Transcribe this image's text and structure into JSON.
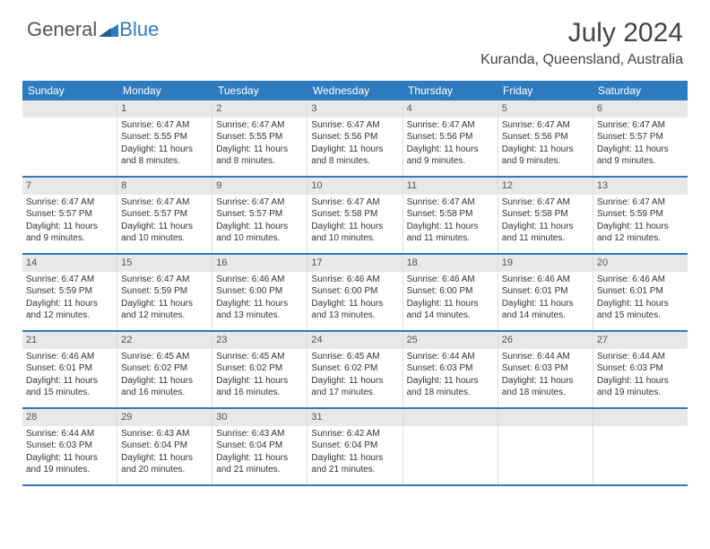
{
  "brand": {
    "part1": "General",
    "part2": "Blue"
  },
  "title": "July 2024",
  "location": "Kuranda, Queensland, Australia",
  "colors": {
    "header_bg": "#2f7bbf",
    "daynum_bg": "#e8e8e8",
    "border": "#2f7bbf",
    "cell_border": "#dddddd",
    "text": "#333333"
  },
  "dayNames": [
    "Sunday",
    "Monday",
    "Tuesday",
    "Wednesday",
    "Thursday",
    "Friday",
    "Saturday"
  ],
  "weeks": [
    [
      {
        "n": "",
        "sr": "",
        "ss": "",
        "dl": ""
      },
      {
        "n": "1",
        "sr": "6:47 AM",
        "ss": "5:55 PM",
        "dl": "11 hours and 8 minutes."
      },
      {
        "n": "2",
        "sr": "6:47 AM",
        "ss": "5:55 PM",
        "dl": "11 hours and 8 minutes."
      },
      {
        "n": "3",
        "sr": "6:47 AM",
        "ss": "5:56 PM",
        "dl": "11 hours and 8 minutes."
      },
      {
        "n": "4",
        "sr": "6:47 AM",
        "ss": "5:56 PM",
        "dl": "11 hours and 9 minutes."
      },
      {
        "n": "5",
        "sr": "6:47 AM",
        "ss": "5:56 PM",
        "dl": "11 hours and 9 minutes."
      },
      {
        "n": "6",
        "sr": "6:47 AM",
        "ss": "5:57 PM",
        "dl": "11 hours and 9 minutes."
      }
    ],
    [
      {
        "n": "7",
        "sr": "6:47 AM",
        "ss": "5:57 PM",
        "dl": "11 hours and 9 minutes."
      },
      {
        "n": "8",
        "sr": "6:47 AM",
        "ss": "5:57 PM",
        "dl": "11 hours and 10 minutes."
      },
      {
        "n": "9",
        "sr": "6:47 AM",
        "ss": "5:57 PM",
        "dl": "11 hours and 10 minutes."
      },
      {
        "n": "10",
        "sr": "6:47 AM",
        "ss": "5:58 PM",
        "dl": "11 hours and 10 minutes."
      },
      {
        "n": "11",
        "sr": "6:47 AM",
        "ss": "5:58 PM",
        "dl": "11 hours and 11 minutes."
      },
      {
        "n": "12",
        "sr": "6:47 AM",
        "ss": "5:58 PM",
        "dl": "11 hours and 11 minutes."
      },
      {
        "n": "13",
        "sr": "6:47 AM",
        "ss": "5:59 PM",
        "dl": "11 hours and 12 minutes."
      }
    ],
    [
      {
        "n": "14",
        "sr": "6:47 AM",
        "ss": "5:59 PM",
        "dl": "11 hours and 12 minutes."
      },
      {
        "n": "15",
        "sr": "6:47 AM",
        "ss": "5:59 PM",
        "dl": "11 hours and 12 minutes."
      },
      {
        "n": "16",
        "sr": "6:46 AM",
        "ss": "6:00 PM",
        "dl": "11 hours and 13 minutes."
      },
      {
        "n": "17",
        "sr": "6:46 AM",
        "ss": "6:00 PM",
        "dl": "11 hours and 13 minutes."
      },
      {
        "n": "18",
        "sr": "6:46 AM",
        "ss": "6:00 PM",
        "dl": "11 hours and 14 minutes."
      },
      {
        "n": "19",
        "sr": "6:46 AM",
        "ss": "6:01 PM",
        "dl": "11 hours and 14 minutes."
      },
      {
        "n": "20",
        "sr": "6:46 AM",
        "ss": "6:01 PM",
        "dl": "11 hours and 15 minutes."
      }
    ],
    [
      {
        "n": "21",
        "sr": "6:46 AM",
        "ss": "6:01 PM",
        "dl": "11 hours and 15 minutes."
      },
      {
        "n": "22",
        "sr": "6:45 AM",
        "ss": "6:02 PM",
        "dl": "11 hours and 16 minutes."
      },
      {
        "n": "23",
        "sr": "6:45 AM",
        "ss": "6:02 PM",
        "dl": "11 hours and 16 minutes."
      },
      {
        "n": "24",
        "sr": "6:45 AM",
        "ss": "6:02 PM",
        "dl": "11 hours and 17 minutes."
      },
      {
        "n": "25",
        "sr": "6:44 AM",
        "ss": "6:03 PM",
        "dl": "11 hours and 18 minutes."
      },
      {
        "n": "26",
        "sr": "6:44 AM",
        "ss": "6:03 PM",
        "dl": "11 hours and 18 minutes."
      },
      {
        "n": "27",
        "sr": "6:44 AM",
        "ss": "6:03 PM",
        "dl": "11 hours and 19 minutes."
      }
    ],
    [
      {
        "n": "28",
        "sr": "6:44 AM",
        "ss": "6:03 PM",
        "dl": "11 hours and 19 minutes."
      },
      {
        "n": "29",
        "sr": "6:43 AM",
        "ss": "6:04 PM",
        "dl": "11 hours and 20 minutes."
      },
      {
        "n": "30",
        "sr": "6:43 AM",
        "ss": "6:04 PM",
        "dl": "11 hours and 21 minutes."
      },
      {
        "n": "31",
        "sr": "6:42 AM",
        "ss": "6:04 PM",
        "dl": "11 hours and 21 minutes."
      },
      {
        "n": "",
        "sr": "",
        "ss": "",
        "dl": ""
      },
      {
        "n": "",
        "sr": "",
        "ss": "",
        "dl": ""
      },
      {
        "n": "",
        "sr": "",
        "ss": "",
        "dl": ""
      }
    ]
  ],
  "labels": {
    "sunrise": "Sunrise: ",
    "sunset": "Sunset: ",
    "daylight": "Daylight: "
  }
}
